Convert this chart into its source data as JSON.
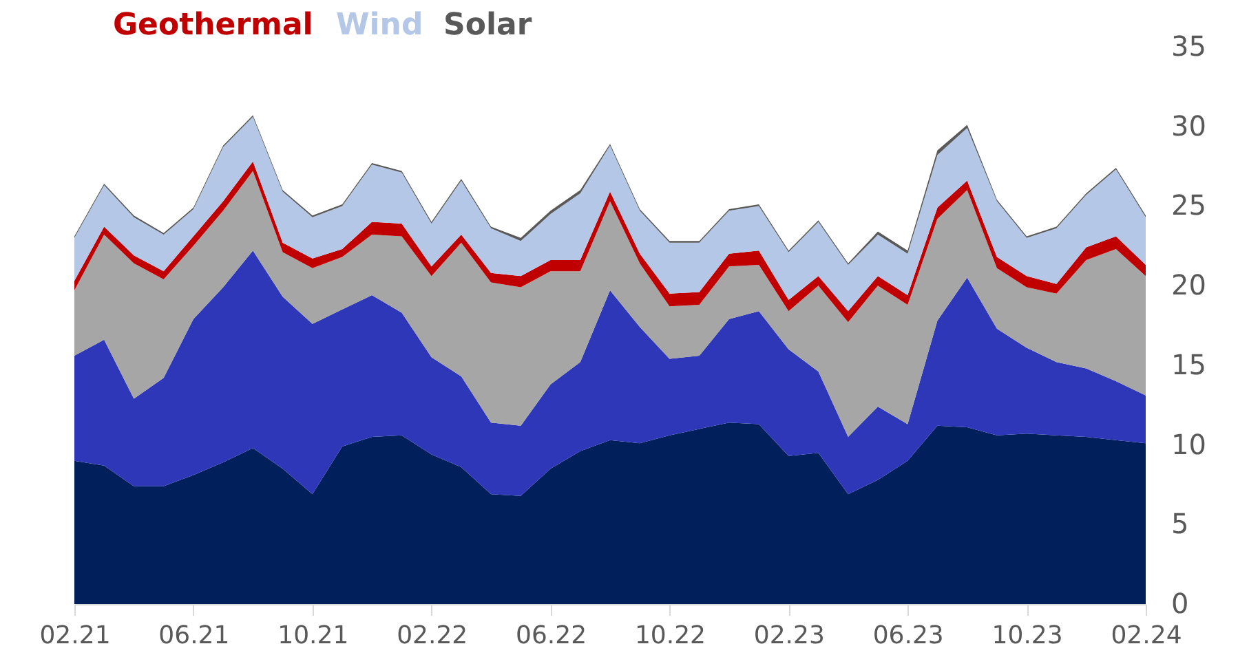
{
  "chart_data": {
    "type": "area",
    "stacked": true,
    "legend": "top left",
    "grid": false,
    "categories": [
      "02.21",
      null,
      null,
      null,
      "06.21",
      null,
      null,
      null,
      "10.21",
      null,
      null,
      null,
      "02.22",
      null,
      null,
      null,
      "06.22",
      null,
      null,
      null,
      "10.22",
      null,
      null,
      null,
      "02.23",
      null,
      null,
      null,
      "06.23",
      null,
      null,
      null,
      "10.23",
      null,
      null,
      null,
      "02.24"
    ],
    "ylim": [
      0,
      35
    ],
    "yticks": [
      0,
      5,
      10,
      15,
      20,
      25,
      30,
      35
    ],
    "series": [
      {
        "color": "#001f5b",
        "values": [
          9.0,
          8.7,
          7.4,
          7.4,
          8.1,
          8.9,
          9.8,
          8.5,
          6.9,
          9.9,
          10.5,
          10.6,
          9.4,
          8.6,
          6.9,
          6.8,
          8.5,
          9.6,
          10.3,
          10.1,
          10.6,
          11.0,
          11.4,
          11.3,
          9.3,
          9.5,
          6.9,
          7.8,
          9.0,
          11.2,
          11.1,
          10.6,
          10.7,
          10.6,
          10.5,
          10.3,
          10.1
        ]
      },
      {
        "color": "#2d37b8",
        "values": [
          6.6,
          7.9,
          5.5,
          6.8,
          9.8,
          11.0,
          12.4,
          10.8,
          10.7,
          8.6,
          8.9,
          7.7,
          6.1,
          5.7,
          4.5,
          4.4,
          5.3,
          5.6,
          9.4,
          7.3,
          4.8,
          4.6,
          6.5,
          7.1,
          6.7,
          5.1,
          3.6,
          4.6,
          2.3,
          6.6,
          9.4,
          6.7,
          5.4,
          4.6,
          4.3,
          3.7,
          3.0
        ]
      },
      {
        "color": "#a6a6a6",
        "values": [
          4.1,
          6.6,
          8.5,
          6.2,
          4.6,
          4.8,
          5.0,
          2.8,
          3.5,
          3.3,
          3.8,
          4.8,
          5.1,
          8.4,
          8.8,
          8.7,
          7.1,
          5.7,
          5.6,
          4.0,
          3.3,
          3.2,
          3.3,
          2.9,
          2.4,
          5.4,
          7.2,
          7.6,
          7.5,
          6.4,
          5.5,
          3.8,
          3.8,
          4.3,
          6.8,
          8.3,
          7.5
        ]
      },
      {
        "name": "Geothermal",
        "color": "#c00000",
        "values": [
          0.6,
          0.5,
          0.5,
          0.5,
          0.6,
          0.6,
          0.6,
          0.6,
          0.6,
          0.5,
          0.8,
          0.8,
          0.6,
          0.5,
          0.6,
          0.7,
          0.7,
          0.7,
          0.6,
          0.6,
          0.8,
          0.8,
          0.8,
          0.9,
          0.7,
          0.6,
          0.7,
          0.6,
          0.6,
          0.7,
          0.6,
          0.7,
          0.7,
          0.6,
          0.8,
          0.8,
          0.7
        ]
      },
      {
        "name": "Wind",
        "color": "#b4c7e7",
        "values": [
          2.7,
          2.6,
          2.4,
          2.3,
          1.7,
          3.4,
          2.8,
          3.2,
          2.6,
          2.7,
          3.6,
          3.2,
          2.7,
          3.4,
          2.8,
          2.2,
          2.9,
          4.2,
          2.9,
          2.7,
          3.2,
          3.1,
          2.7,
          2.8,
          3.0,
          3.4,
          2.9,
          2.6,
          2.6,
          3.3,
          3.3,
          3.5,
          2.4,
          3.5,
          3.3,
          4.2,
          3.0
        ]
      },
      {
        "name": "Solar",
        "color": "#595959",
        "values": [
          0.1,
          0.1,
          0.1,
          0.1,
          0.1,
          0.1,
          0.1,
          0.1,
          0.1,
          0.1,
          0.1,
          0.1,
          0.1,
          0.1,
          0.1,
          0.2,
          0.2,
          0.2,
          0.1,
          0.1,
          0.1,
          0.1,
          0.1,
          0.1,
          0.1,
          0.1,
          0.1,
          0.2,
          0.2,
          0.3,
          0.2,
          0.1,
          0.1,
          0.1,
          0.1,
          0.1,
          0.1
        ]
      }
    ]
  }
}
